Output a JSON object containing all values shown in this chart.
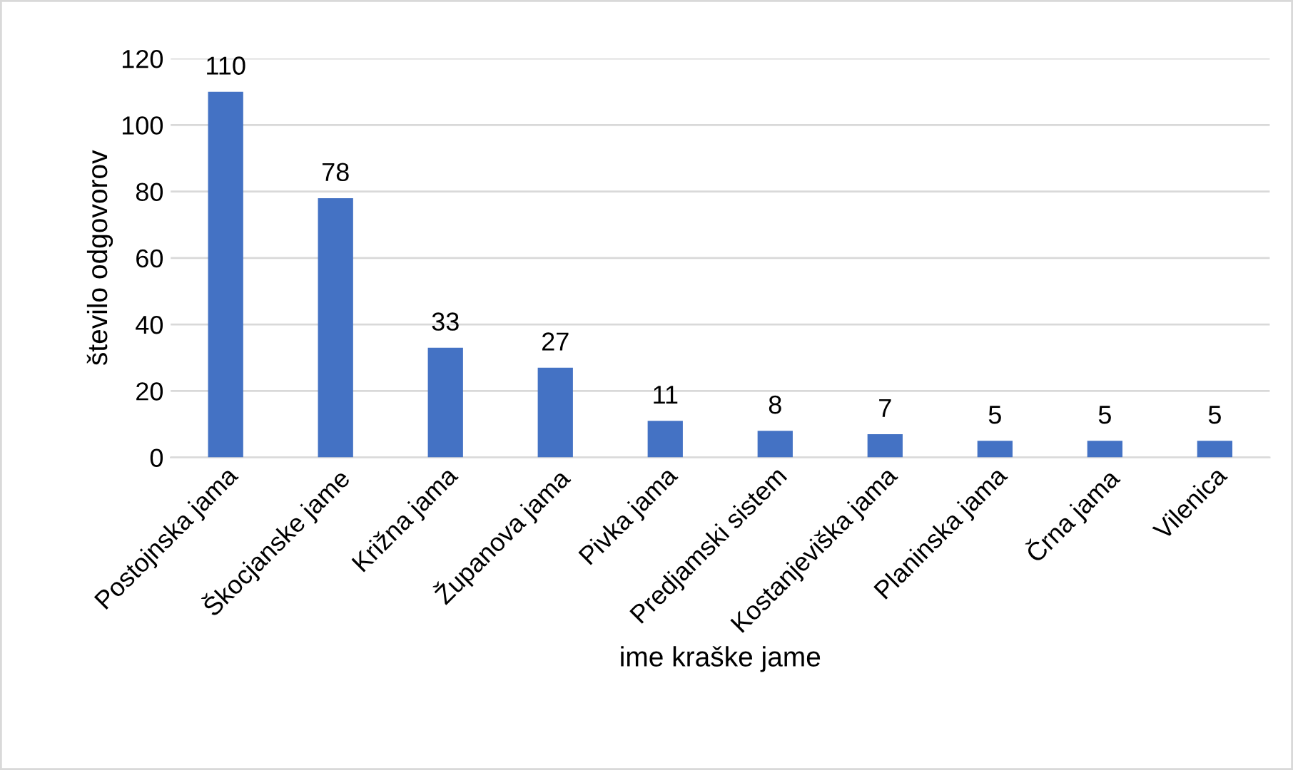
{
  "chart_data": {
    "type": "bar",
    "xlabel": "ime kraške jame",
    "ylabel": "število odgovorov",
    "categories": [
      "Postojnska jama",
      "Škocjanske jame",
      "Križna jama",
      "Županova jama",
      "Pivka jama",
      "Predjamski sistem",
      "Kostanjeviška jama",
      "Planinska jama",
      "Črna jama",
      "Vilenica"
    ],
    "values": [
      110,
      78,
      33,
      27,
      11,
      8,
      7,
      5,
      5,
      5
    ],
    "color": "#4472c4",
    "ylim": [
      0,
      120
    ],
    "yticks": [
      0,
      20,
      40,
      60,
      80,
      100,
      120
    ],
    "grid": "y",
    "data_labels": true
  }
}
